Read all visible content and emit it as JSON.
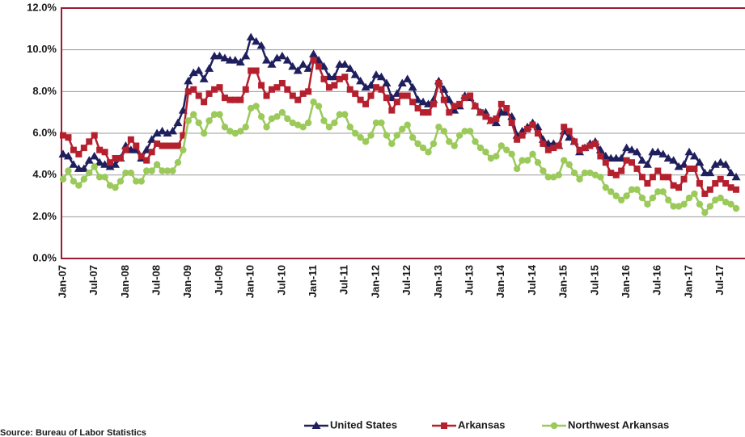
{
  "chart_data": {
    "type": "line",
    "source": "Source: Bureau of Labor Statistics",
    "categories": [
      "Jan-07",
      null,
      null,
      null,
      null,
      null,
      "Jul-07",
      null,
      null,
      null,
      null,
      null,
      "Jan-08",
      null,
      null,
      null,
      null,
      null,
      "Jul-08",
      null,
      null,
      null,
      null,
      null,
      "Jan-09",
      null,
      null,
      null,
      null,
      null,
      "Jul-09",
      null,
      null,
      null,
      null,
      null,
      "Jan-10",
      null,
      null,
      null,
      null,
      null,
      "Jul-10",
      null,
      null,
      null,
      null,
      null,
      "Jan-11",
      null,
      null,
      null,
      null,
      null,
      "Jul-11",
      null,
      null,
      null,
      null,
      null,
      "Jan-12",
      null,
      null,
      null,
      null,
      null,
      "Jul-12",
      null,
      null,
      null,
      null,
      null,
      "Jan-13",
      null,
      null,
      null,
      null,
      null,
      "Jul-13",
      null,
      null,
      null,
      null,
      null,
      "Jan-14",
      null,
      null,
      null,
      null,
      null,
      "Jul-14",
      null,
      null,
      null,
      null,
      null,
      "Jan-15",
      null,
      null,
      null,
      null,
      null,
      "Jul-15",
      null,
      null,
      null,
      null,
      null,
      "Jan-16",
      null,
      null,
      null,
      null,
      null,
      "Jul-16",
      null,
      null,
      null,
      null,
      null,
      "Jan-17",
      null,
      null,
      null,
      null,
      null,
      "Jul-17",
      null,
      null,
      null
    ],
    "series": [
      {
        "name": "United States",
        "color": "#1f1f5e",
        "marker": "triangle",
        "values": [
          5.0,
          4.9,
          4.5,
          4.3,
          4.3,
          4.7,
          4.9,
          4.6,
          4.5,
          4.4,
          4.5,
          4.8,
          5.4,
          5.2,
          5.2,
          4.8,
          5.2,
          5.7,
          6.0,
          6.1,
          6.0,
          6.1,
          6.5,
          7.1,
          8.5,
          8.9,
          9.0,
          8.6,
          9.1,
          9.7,
          9.7,
          9.6,
          9.5,
          9.5,
          9.4,
          9.7,
          10.6,
          10.4,
          10.2,
          9.5,
          9.3,
          9.6,
          9.7,
          9.5,
          9.2,
          9.0,
          9.3,
          9.1,
          9.8,
          9.5,
          9.2,
          8.7,
          8.7,
          9.3,
          9.3,
          9.1,
          8.8,
          8.5,
          8.2,
          8.3,
          8.8,
          8.7,
          8.4,
          7.7,
          7.9,
          8.4,
          8.6,
          8.2,
          7.6,
          7.5,
          7.4,
          7.6,
          8.5,
          8.1,
          7.6,
          7.1,
          7.3,
          7.8,
          7.7,
          7.3,
          7.0,
          7.0,
          6.6,
          6.5,
          7.0,
          7.0,
          6.8,
          5.9,
          6.1,
          6.3,
          6.5,
          6.3,
          5.7,
          5.5,
          5.5,
          5.4,
          6.1,
          5.8,
          5.6,
          5.1,
          5.3,
          5.5,
          5.6,
          5.2,
          4.9,
          4.8,
          4.8,
          4.8,
          5.3,
          5.2,
          5.1,
          4.7,
          4.5,
          5.1,
          5.1,
          5.0,
          4.8,
          4.7,
          4.4,
          4.5,
          5.1,
          4.9,
          4.6,
          4.1,
          4.1,
          4.5,
          4.6,
          4.5,
          4.1,
          3.9
        ]
      },
      {
        "name": "Arkansas",
        "color": "#b5202e",
        "marker": "square",
        "values": [
          5.9,
          5.8,
          5.2,
          5.0,
          5.3,
          5.6,
          5.9,
          5.2,
          5.1,
          4.6,
          4.8,
          4.8,
          5.2,
          5.7,
          5.4,
          4.9,
          4.7,
          5.1,
          5.5,
          5.4,
          5.4,
          5.4,
          5.4,
          5.9,
          8.0,
          8.1,
          7.8,
          7.5,
          7.9,
          8.1,
          8.2,
          7.7,
          7.6,
          7.6,
          7.6,
          8.1,
          9.0,
          9.0,
          8.3,
          7.8,
          8.1,
          8.2,
          8.4,
          8.1,
          7.8,
          7.6,
          7.9,
          8.0,
          9.5,
          9.2,
          8.6,
          8.2,
          8.3,
          8.6,
          8.7,
          8.1,
          7.9,
          7.6,
          7.4,
          7.8,
          8.2,
          8.1,
          7.7,
          7.1,
          7.5,
          7.8,
          7.8,
          7.5,
          7.2,
          7.0,
          7.0,
          7.4,
          8.4,
          7.6,
          7.0,
          7.3,
          7.4,
          7.7,
          7.8,
          7.3,
          7.0,
          6.8,
          6.6,
          6.7,
          7.4,
          7.2,
          6.5,
          5.7,
          5.9,
          6.2,
          6.4,
          6.0,
          5.5,
          5.2,
          5.3,
          5.4,
          6.3,
          6.1,
          5.6,
          5.2,
          5.3,
          5.4,
          5.5,
          4.9,
          4.6,
          4.1,
          4.0,
          4.2,
          4.7,
          4.6,
          4.3,
          3.9,
          3.6,
          3.9,
          4.2,
          3.9,
          3.9,
          3.5,
          3.4,
          3.8,
          4.3,
          4.3,
          3.6,
          3.1,
          3.3,
          3.6,
          3.8,
          3.6,
          3.4,
          3.3
        ]
      },
      {
        "name": "Northwest Arkansas",
        "color": "#9bc95a",
        "marker": "circle",
        "values": [
          3.8,
          4.2,
          3.7,
          3.5,
          3.8,
          4.1,
          4.4,
          3.9,
          3.9,
          3.5,
          3.4,
          3.7,
          4.1,
          4.1,
          3.7,
          3.7,
          4.2,
          4.2,
          4.5,
          4.2,
          4.2,
          4.2,
          4.6,
          5.2,
          6.6,
          6.9,
          6.5,
          6.0,
          6.6,
          6.9,
          6.9,
          6.3,
          6.1,
          6.0,
          6.1,
          6.3,
          7.2,
          7.3,
          6.8,
          6.3,
          6.7,
          6.8,
          7.0,
          6.7,
          6.5,
          6.4,
          6.3,
          6.5,
          7.5,
          7.3,
          6.6,
          6.3,
          6.5,
          6.9,
          6.9,
          6.3,
          6.0,
          5.8,
          5.6,
          5.9,
          6.5,
          6.5,
          5.9,
          5.5,
          5.9,
          6.2,
          6.4,
          5.8,
          5.5,
          5.3,
          5.1,
          5.5,
          6.3,
          6.1,
          5.6,
          5.4,
          5.9,
          6.1,
          6.1,
          5.6,
          5.3,
          5.1,
          4.8,
          4.9,
          5.4,
          5.2,
          5.0,
          4.3,
          4.7,
          4.7,
          5.0,
          4.6,
          4.2,
          3.9,
          3.9,
          4.0,
          4.7,
          4.5,
          4.1,
          3.8,
          4.1,
          4.1,
          4.0,
          3.9,
          3.4,
          3.2,
          3.0,
          2.8,
          3.0,
          3.3,
          3.3,
          2.9,
          2.6,
          2.9,
          3.2,
          3.2,
          2.8,
          2.5,
          2.5,
          2.6,
          2.9,
          3.1,
          2.6,
          2.2,
          2.5,
          2.8,
          2.9,
          2.7,
          2.6,
          2.4
        ]
      }
    ],
    "ylim": [
      0,
      12
    ],
    "yticks": [
      {
        "value": 0,
        "label": "0.0%"
      },
      {
        "value": 2,
        "label": "2.0%"
      },
      {
        "value": 4,
        "label": "4.0%"
      },
      {
        "value": 6,
        "label": "6.0%"
      },
      {
        "value": 8,
        "label": "8.0%"
      },
      {
        "value": 10,
        "label": "10.0%"
      },
      {
        "value": 12,
        "label": "12.0%"
      }
    ],
    "grid": true,
    "legend": "bottom"
  }
}
